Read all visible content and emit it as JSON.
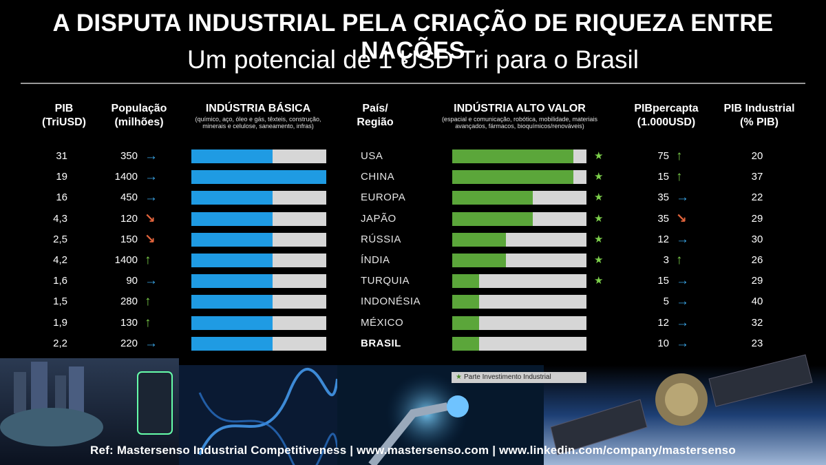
{
  "title": "A DISPUTA INDUSTRIAL PELA CRIAÇÃO DE RIQUEZA ENTRE NAÇÕES",
  "subtitle": "Um potencial de 1 USD Tri para o Brasil",
  "headers": {
    "pib": "PIB\n(TriUSD)",
    "populacao": "População\n(milhões)",
    "basica": "INDÚSTRIA BÁSICA",
    "basica_note": "(químico, aço, óleo e gás, têxteis, construção, minerais e celulose, saneamento, infras)",
    "pais": "País/\nRegião",
    "alto_valor": "INDÚSTRIA ALTO VALOR",
    "alto_valor_note": "(espacial e comunicação, robótica, mobilidade, materiais avançados, fármacos, bioquímicos/renováveis)",
    "percapita": "PIBpercapta\n(1.000USD)",
    "industrial": "PIB Industrial\n(% PIB)"
  },
  "colors": {
    "basic_bar": "#1f9be3",
    "high_value_bar": "#5ba63a",
    "track": "#d6d6d6",
    "arrow_right": "#3aa5e6",
    "arrow_up": "#7ccf4a",
    "arrow_down": "#e2643c",
    "star": "#7ccf4a"
  },
  "chart_data": {
    "type": "table",
    "columns": [
      "PIB (TriUSD)",
      "População (milhões)",
      "Indústria Básica",
      "País/Região",
      "Indústria Alto Valor",
      "PIBpercapta (1.000USD)",
      "PIB Industrial (% PIB)"
    ],
    "rows": [
      {
        "pib": "31",
        "pop": "350",
        "pop_trend": "right",
        "basic": 0.6,
        "country": "USA",
        "high": 0.9,
        "star": true,
        "pc": "75",
        "pc_trend": "up",
        "ind": "20"
      },
      {
        "pib": "19",
        "pop": "1400",
        "pop_trend": "right",
        "basic": 1.0,
        "country": "CHINA",
        "high": 0.9,
        "star": true,
        "pc": "15",
        "pc_trend": "up",
        "ind": "37"
      },
      {
        "pib": "16",
        "pop": "450",
        "pop_trend": "right",
        "basic": 0.6,
        "country": "EUROPA",
        "high": 0.6,
        "star": true,
        "pc": "35",
        "pc_trend": "right",
        "ind": "22"
      },
      {
        "pib": "4,3",
        "pop": "120",
        "pop_trend": "down",
        "basic": 0.6,
        "country": "JAPÃO",
        "high": 0.6,
        "star": true,
        "pc": "35",
        "pc_trend": "down",
        "ind": "29"
      },
      {
        "pib": "2,5",
        "pop": "150",
        "pop_trend": "down",
        "basic": 0.6,
        "country": "RÚSSIA",
        "high": 0.4,
        "star": true,
        "pc": "12",
        "pc_trend": "right",
        "ind": "30"
      },
      {
        "pib": "4,2",
        "pop": "1400",
        "pop_trend": "up",
        "basic": 0.6,
        "country": "ÍNDIA",
        "high": 0.4,
        "star": true,
        "pc": "3",
        "pc_trend": "up",
        "ind": "26"
      },
      {
        "pib": "1,6",
        "pop": "90",
        "pop_trend": "right",
        "basic": 0.6,
        "country": "TURQUIA",
        "high": 0.2,
        "star": true,
        "pc": "15",
        "pc_trend": "right",
        "ind": "29"
      },
      {
        "pib": "1,5",
        "pop": "280",
        "pop_trend": "up",
        "basic": 0.6,
        "country": "INDONÉSIA",
        "high": 0.2,
        "star": false,
        "pc": "5",
        "pc_trend": "right",
        "ind": "40"
      },
      {
        "pib": "1,9",
        "pop": "130",
        "pop_trend": "up",
        "basic": 0.6,
        "country": "MÉXICO",
        "high": 0.2,
        "star": false,
        "pc": "12",
        "pc_trend": "right",
        "ind": "32"
      },
      {
        "pib": "2,2",
        "pop": "220",
        "pop_trend": "right",
        "basic": 0.6,
        "country": "BRASIL",
        "high": 0.2,
        "star": false,
        "pc": "10",
        "pc_trend": "right",
        "ind": "23",
        "emphasis": true
      }
    ]
  },
  "legend": {
    "icon": "star-icon",
    "label": "Parte Investimento Industrial"
  },
  "footer": "Ref: Mastersenso Industrial Competitiveness  |  www.mastersenso.com  |  www.linkedin.com/company/mastersenso"
}
